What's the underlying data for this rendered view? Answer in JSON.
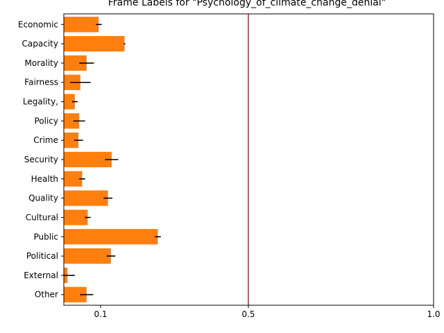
{
  "chart_data": {
    "type": "bar",
    "orientation": "horizontal",
    "title": "Frame Labels for \"Psychology_of_climate_change_denial\"",
    "xlabel": "",
    "ylabel": "",
    "categories": [
      "Economic",
      "Capacity",
      "Morality",
      "Fairness",
      "Legality,",
      "Policy",
      "Crime",
      "Security",
      "Health",
      "Quality",
      "Cultural",
      "Public",
      "Political",
      "External",
      "Other"
    ],
    "values": [
      0.095,
      0.165,
      0.062,
      0.045,
      0.03,
      0.042,
      0.04,
      0.13,
      0.05,
      0.12,
      0.065,
      0.255,
      0.128,
      0.01,
      0.062
    ],
    "errors": [
      0.008,
      0.002,
      0.02,
      0.028,
      0.008,
      0.016,
      0.012,
      0.018,
      0.008,
      0.012,
      0.008,
      0.008,
      0.012,
      0.02,
      0.018
    ],
    "xticks": [
      {
        "value": 0.1,
        "label": "0.1"
      },
      {
        "value": 0.5,
        "label": "0.5"
      },
      {
        "value": 1.0,
        "label": "1.0"
      }
    ],
    "xlim": [
      0,
      1.0
    ],
    "reference_line": 0.5,
    "grid": false,
    "colors": {
      "bar": "#ff7f0e",
      "error": "#000000",
      "reference_line": "#d62728",
      "axis": "#000000"
    }
  }
}
